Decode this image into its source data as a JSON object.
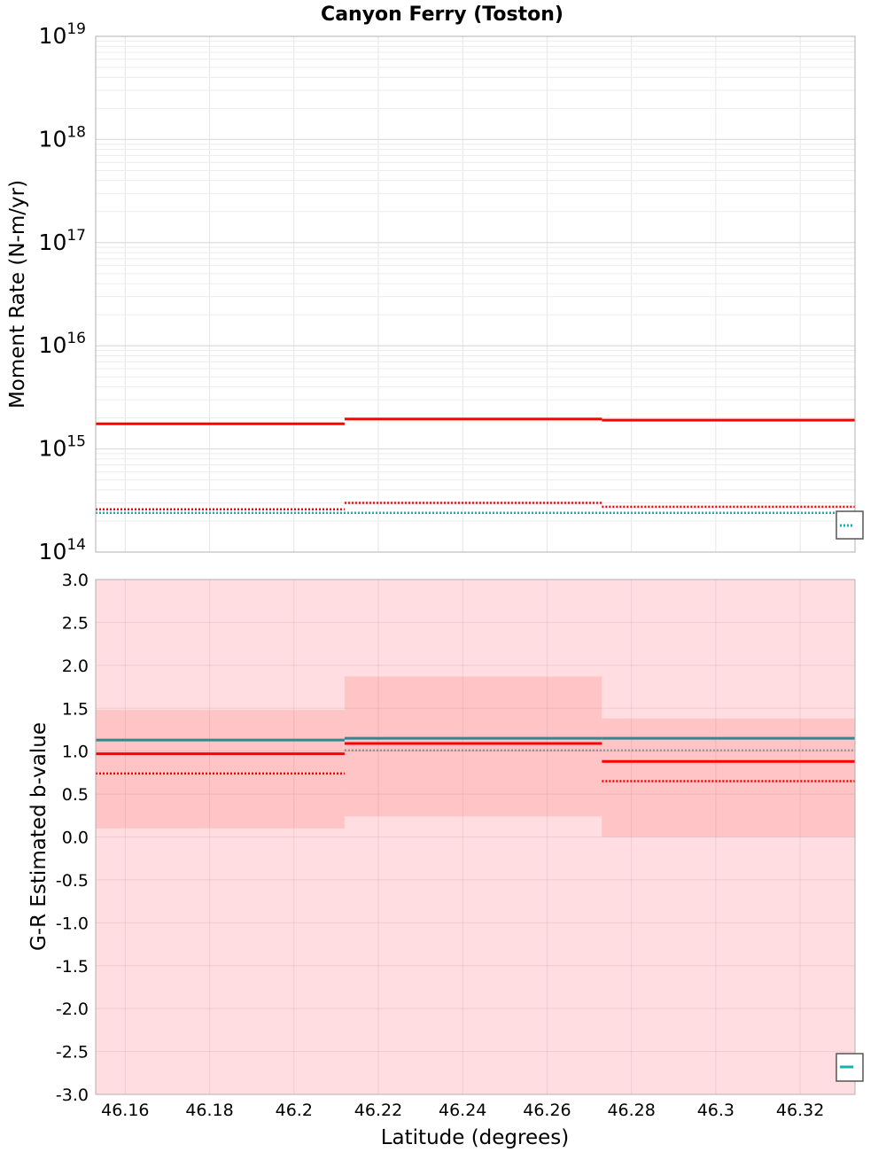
{
  "chart_data": [
    {
      "type": "line",
      "title": "Canyon Ferry (Toston)",
      "xlabel": "",
      "ylabel": "Moment Rate (N-m/yr)",
      "yscale": "log",
      "xlim": [
        46.153,
        46.333
      ],
      "ylim": [
        100000000000000.0,
        1e+19
      ],
      "y_tick_labels": [
        {
          "base": "10",
          "exp": "14",
          "value": 100000000000000.0
        },
        {
          "base": "10",
          "exp": "15",
          "value": 1000000000000000.0
        },
        {
          "base": "10",
          "exp": "16",
          "value": 1e+16
        },
        {
          "base": "10",
          "exp": "17",
          "value": 1e+17
        },
        {
          "base": "10",
          "exp": "18",
          "value": 1e+18
        },
        {
          "base": "10",
          "exp": "19",
          "value": 1e+19
        }
      ],
      "grid": true,
      "legend": "bottom-right (clipped)",
      "series": [
        {
          "name": "red solid",
          "color": "#ff0000",
          "style": "solid",
          "segments": [
            {
              "x0": 46.153,
              "x1": 46.212,
              "y": 1750000000000000.0
            },
            {
              "x0": 46.212,
              "x1": 46.273,
              "y": 1950000000000000.0
            },
            {
              "x0": 46.273,
              "x1": 46.333,
              "y": 1900000000000000.0
            }
          ]
        },
        {
          "name": "red dotted",
          "color": "#ff0000",
          "style": "dotted",
          "segments": [
            {
              "x0": 46.153,
              "x1": 46.212,
              "y": 260000000000000.0
            },
            {
              "x0": 46.212,
              "x1": 46.273,
              "y": 300000000000000.0
            },
            {
              "x0": 46.273,
              "x1": 46.333,
              "y": 275000000000000.0
            }
          ]
        },
        {
          "name": "teal dotted",
          "color": "#1ab0b0",
          "style": "dotted",
          "segments": [
            {
              "x0": 46.153,
              "x1": 46.333,
              "y": 240000000000000.0
            }
          ]
        }
      ]
    },
    {
      "type": "line",
      "title": "",
      "xlabel": "Latitude (degrees)",
      "ylabel": "G-R Estimated b-value",
      "xlim": [
        46.153,
        46.333
      ],
      "ylim": [
        -3.0,
        3.0
      ],
      "x_ticks": [
        46.16,
        46.18,
        46.2,
        46.22,
        46.24,
        46.26,
        46.28,
        46.3,
        46.32
      ],
      "x_tick_labels": [
        "46.16",
        "46.18",
        "46.2",
        "46.22",
        "46.24",
        "46.26",
        "46.28",
        "46.3",
        "46.32"
      ],
      "y_ticks": [
        3.0,
        2.5,
        2.0,
        1.5,
        1.0,
        0.5,
        0.0,
        -0.5,
        -1.0,
        -1.5,
        -2.0,
        -2.5,
        -3.0
      ],
      "y_tick_labels": [
        "3.0",
        "2.5",
        "2.0",
        "1.5",
        "1.0",
        "0.5",
        "0.0",
        "-0.5",
        "-1.0",
        "-1.5",
        "-2.0",
        "-2.5",
        "-3.0"
      ],
      "grid": true,
      "legend": "bottom-right (clipped)",
      "background_band": {
        "y0": -3.0,
        "y1": 3.0,
        "color": "#ffdde0"
      },
      "confidence_bands": [
        {
          "x0": 46.153,
          "x1": 46.212,
          "y0": 0.1,
          "y1": 1.48
        },
        {
          "x0": 46.212,
          "x1": 46.273,
          "y0": 0.24,
          "y1": 1.87
        },
        {
          "x0": 46.273,
          "x1": 46.333,
          "y0": 0.0,
          "y1": 1.38
        }
      ],
      "series": [
        {
          "name": "steel-teal solid",
          "color": "#3a8490",
          "style": "solid",
          "segments": [
            {
              "x0": 46.153,
              "x1": 46.212,
              "y": 1.13
            },
            {
              "x0": 46.212,
              "x1": 46.273,
              "y": 1.15
            },
            {
              "x0": 46.273,
              "x1": 46.333,
              "y": 1.15
            }
          ]
        },
        {
          "name": "red solid",
          "color": "#ff0000",
          "style": "solid",
          "segments": [
            {
              "x0": 46.153,
              "x1": 46.212,
              "y": 0.97
            },
            {
              "x0": 46.212,
              "x1": 46.273,
              "y": 1.09
            },
            {
              "x0": 46.273,
              "x1": 46.333,
              "y": 0.88
            }
          ]
        },
        {
          "name": "red dotted",
          "color": "#ff0000",
          "style": "dotted",
          "segments": [
            {
              "x0": 46.153,
              "x1": 46.212,
              "y": 0.74
            },
            {
              "x0": 46.212,
              "x1": 46.273,
              "y": 1.01
            },
            {
              "x0": 46.273,
              "x1": 46.333,
              "y": 0.65
            }
          ]
        },
        {
          "name": "gray dotted",
          "color": "#8a9ea2",
          "style": "dotted",
          "segments": [
            {
              "x0": 46.212,
              "x1": 46.333,
              "y": 1.01
            }
          ]
        }
      ]
    }
  ]
}
